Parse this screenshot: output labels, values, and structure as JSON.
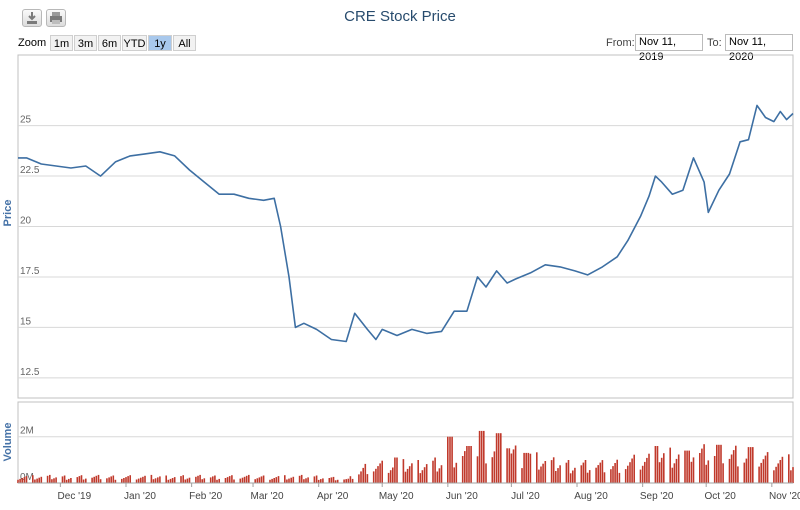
{
  "toolbar": {
    "export_icon": "download-icon",
    "print_icon": "printer-icon"
  },
  "title": "CRE Stock Price",
  "range_selector": {
    "zoom_label": "Zoom",
    "buttons": [
      "1m",
      "3m",
      "6m",
      "YTD",
      "1y",
      "All"
    ],
    "selected": "1y"
  },
  "date_range": {
    "from_label": "From:",
    "from_value": "Nov 11, 2019",
    "to_label": "To:",
    "to_value": "Nov 11, 2020"
  },
  "colors": {
    "price_line": "#3d6fa3",
    "volume_bar": "#c0392b",
    "axis_text": "#666666",
    "axis_title": "#4572a7"
  },
  "chart_data": [
    {
      "type": "line",
      "ylabel": "Price",
      "ylim": [
        11.5,
        28.5
      ],
      "yticks": [
        12.5,
        15,
        17.5,
        20,
        22.5,
        25
      ],
      "ytick_labels": [
        "12.5",
        "15",
        "17.5",
        "20",
        "22.5",
        "25"
      ],
      "x_range": [
        "2019-11-11",
        "2020-11-11"
      ],
      "grid": true,
      "series": [
        {
          "points": [
            [
              "2019-11-11",
              23.4
            ],
            [
              "2019-11-15",
              23.4
            ],
            [
              "2019-11-22",
              23.1
            ],
            [
              "2019-11-29",
              23.0
            ],
            [
              "2019-12-06",
              22.9
            ],
            [
              "2019-12-13",
              23.0
            ],
            [
              "2019-12-20",
              22.5
            ],
            [
              "2019-12-27",
              23.2
            ],
            [
              "2020-01-03",
              23.5
            ],
            [
              "2020-01-10",
              23.6
            ],
            [
              "2020-01-17",
              23.7
            ],
            [
              "2020-01-24",
              23.5
            ],
            [
              "2020-01-31",
              22.8
            ],
            [
              "2020-02-07",
              22.2
            ],
            [
              "2020-02-14",
              21.6
            ],
            [
              "2020-02-21",
              21.6
            ],
            [
              "2020-02-28",
              21.4
            ],
            [
              "2020-03-06",
              21.3
            ],
            [
              "2020-03-11",
              21.4
            ],
            [
              "2020-03-14",
              20.0
            ],
            [
              "2020-03-18",
              17.5
            ],
            [
              "2020-03-21",
              15.0
            ],
            [
              "2020-03-25",
              15.2
            ],
            [
              "2020-03-31",
              14.9
            ],
            [
              "2020-04-07",
              14.4
            ],
            [
              "2020-04-14",
              14.3
            ],
            [
              "2020-04-18",
              15.7
            ],
            [
              "2020-04-24",
              14.9
            ],
            [
              "2020-04-28",
              14.4
            ],
            [
              "2020-05-01",
              14.9
            ],
            [
              "2020-05-08",
              14.6
            ],
            [
              "2020-05-15",
              14.9
            ],
            [
              "2020-05-22",
              14.7
            ],
            [
              "2020-05-29",
              14.8
            ],
            [
              "2020-06-04",
              15.8
            ],
            [
              "2020-06-10",
              15.8
            ],
            [
              "2020-06-15",
              17.5
            ],
            [
              "2020-06-19",
              17.0
            ],
            [
              "2020-06-24",
              17.8
            ],
            [
              "2020-06-29",
              17.2
            ],
            [
              "2020-07-03",
              17.4
            ],
            [
              "2020-07-10",
              17.7
            ],
            [
              "2020-07-17",
              18.1
            ],
            [
              "2020-07-24",
              18.0
            ],
            [
              "2020-07-31",
              17.8
            ],
            [
              "2020-08-06",
              17.6
            ],
            [
              "2020-08-13",
              18.0
            ],
            [
              "2020-08-20",
              18.5
            ],
            [
              "2020-08-25",
              19.3
            ],
            [
              "2020-08-31",
              20.5
            ],
            [
              "2020-09-04",
              21.5
            ],
            [
              "2020-09-07",
              22.5
            ],
            [
              "2020-09-10",
              22.2
            ],
            [
              "2020-09-15",
              21.6
            ],
            [
              "2020-09-20",
              21.8
            ],
            [
              "2020-09-25",
              23.4
            ],
            [
              "2020-09-30",
              22.2
            ],
            [
              "2020-10-02",
              20.7
            ],
            [
              "2020-10-07",
              21.8
            ],
            [
              "2020-10-12",
              22.6
            ],
            [
              "2020-10-17",
              24.2
            ],
            [
              "2020-10-21",
              24.3
            ],
            [
              "2020-10-25",
              26.0
            ],
            [
              "2020-10-29",
              25.4
            ],
            [
              "2020-11-02",
              25.2
            ],
            [
              "2020-11-05",
              25.7
            ],
            [
              "2020-11-08",
              25.3
            ],
            [
              "2020-11-11",
              25.6
            ]
          ]
        }
      ]
    },
    {
      "type": "bar",
      "ylabel": "Volume",
      "ylim": [
        0,
        3500000
      ],
      "yticks": [
        0,
        2000000
      ],
      "ytick_labels": [
        "0M",
        "2M"
      ],
      "x_range": [
        "2019-11-11",
        "2020-11-11"
      ],
      "xticks": [
        "2019-12-01",
        "2020-01-01",
        "2020-02-01",
        "2020-03-01",
        "2020-04-01",
        "2020-05-01",
        "2020-06-01",
        "2020-07-01",
        "2020-08-01",
        "2020-09-01",
        "2020-10-01",
        "2020-11-01"
      ],
      "xtick_labels": [
        "Dec '19",
        "Jan '20",
        "Feb '20",
        "Mar '20",
        "Apr '20",
        "May '20",
        "Jun '20",
        "Jul '20",
        "Aug '20",
        "Sep '20",
        "Oct '20",
        "Nov '20"
      ],
      "volume_profile": [
        [
          "2019-11-11",
          250000
        ],
        [
          "2020-03-31",
          250000
        ],
        [
          "2020-04-15",
          150000
        ],
        [
          "2020-04-24",
          700000
        ],
        [
          "2020-05-15",
          750000
        ],
        [
          "2020-05-31",
          850000
        ],
        [
          "2020-06-08",
          1200000
        ],
        [
          "2020-06-24",
          1500000
        ],
        [
          "2020-07-05",
          1200000
        ],
        [
          "2020-07-20",
          800000
        ],
        [
          "2020-08-15",
          700000
        ],
        [
          "2020-09-15",
          1200000
        ],
        [
          "2020-10-15",
          1200000
        ],
        [
          "2020-11-11",
          900000
        ]
      ],
      "spikes": [
        [
          "2020-05-08",
          1100000
        ],
        [
          "2020-06-02",
          2000000
        ],
        [
          "2020-06-11",
          1600000
        ],
        [
          "2020-06-17",
          2250000
        ],
        [
          "2020-06-25",
          2150000
        ],
        [
          "2020-06-29",
          1500000
        ],
        [
          "2020-07-08",
          1300000
        ],
        [
          "2020-09-07",
          1600000
        ],
        [
          "2020-09-22",
          1400000
        ],
        [
          "2020-10-07",
          1650000
        ],
        [
          "2020-10-22",
          1550000
        ]
      ]
    }
  ]
}
